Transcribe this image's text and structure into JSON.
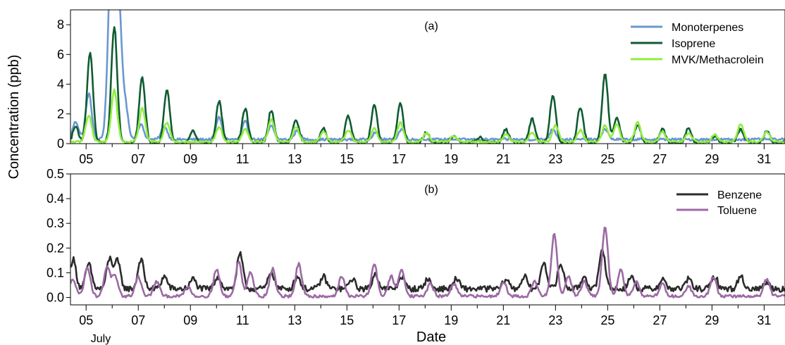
{
  "chart_data": [
    {
      "type": "line",
      "panel_label": "(a)",
      "x_ticks": [
        "05",
        "07",
        "09",
        "11",
        "13",
        "15",
        "17",
        "19",
        "21",
        "23",
        "25",
        "27",
        "29",
        "31"
      ],
      "x_range": [
        4.4,
        31.8
      ],
      "ylim": [
        0,
        9
      ],
      "y_ticks": [
        "0",
        "2",
        "4",
        "6",
        "8"
      ],
      "legend_position": "top-right",
      "grid": false,
      "series": [
        {
          "name": "Monoterpenes",
          "color": "#6b97cf",
          "base": 0.28,
          "noise": 0.08,
          "peaks": [
            [
              4.6,
              1.2
            ],
            [
              5.1,
              3.1
            ],
            [
              5.9,
              5.0
            ],
            [
              6.02,
              10.5
            ],
            [
              6.25,
              8.6
            ],
            [
              6.5,
              2.2
            ],
            [
              7.1,
              1.0
            ],
            [
              8.0,
              0.9
            ],
            [
              10.1,
              1.5
            ],
            [
              11.1,
              1.2
            ],
            [
              12.1,
              0.9
            ],
            [
              13.1,
              0.6
            ],
            [
              16.1,
              0.5
            ],
            [
              17.1,
              0.7
            ],
            [
              22.9,
              0.7
            ],
            [
              24.9,
              0.7
            ]
          ]
        },
        {
          "name": "Isoprene",
          "color": "#0f5c32",
          "base": 0.05,
          "noise": 0.1,
          "peaks": [
            [
              4.6,
              1.1
            ],
            [
              5.15,
              6.1
            ],
            [
              6.08,
              7.8
            ],
            [
              7.15,
              4.4
            ],
            [
              8.1,
              3.5
            ],
            [
              9.1,
              0.8
            ],
            [
              10.1,
              2.8
            ],
            [
              11.1,
              2.3
            ],
            [
              12.1,
              2.2
            ],
            [
              13.05,
              1.6
            ],
            [
              14.1,
              1.0
            ],
            [
              15.05,
              1.8
            ],
            [
              16.05,
              2.5
            ],
            [
              17.05,
              2.6
            ],
            [
              18.05,
              0.7
            ],
            [
              19.1,
              0.5
            ],
            [
              20.1,
              0.4
            ],
            [
              21.1,
              0.9
            ],
            [
              22.1,
              1.6
            ],
            [
              22.9,
              3.2
            ],
            [
              23.95,
              2.4
            ],
            [
              24.9,
              4.6
            ],
            [
              25.35,
              1.7
            ],
            [
              26.15,
              1.2
            ],
            [
              27.1,
              0.9
            ],
            [
              28.1,
              1.0
            ],
            [
              29.1,
              0.5
            ],
            [
              30.1,
              0.9
            ],
            [
              31.1,
              0.8
            ]
          ]
        },
        {
          "name": "MVK/Methacrolein",
          "color": "#90ee40",
          "base": 0.12,
          "noise": 0.06,
          "peaks": [
            [
              5.1,
              1.8
            ],
            [
              6.08,
              3.5
            ],
            [
              7.15,
              2.3
            ],
            [
              8.1,
              1.3
            ],
            [
              10.1,
              1.0
            ],
            [
              11.1,
              0.9
            ],
            [
              12.1,
              1.5
            ],
            [
              13.05,
              1.0
            ],
            [
              14.1,
              0.7
            ],
            [
              15.05,
              0.8
            ],
            [
              16.05,
              0.9
            ],
            [
              17.05,
              1.3
            ],
            [
              18.05,
              0.6
            ],
            [
              19.1,
              0.4
            ],
            [
              21.1,
              0.5
            ],
            [
              22.1,
              0.6
            ],
            [
              23.0,
              1.1
            ],
            [
              23.95,
              0.8
            ],
            [
              24.9,
              1.1
            ],
            [
              25.35,
              1.2
            ],
            [
              26.15,
              1.3
            ],
            [
              27.1,
              0.7
            ],
            [
              28.1,
              0.6
            ],
            [
              29.1,
              0.5
            ],
            [
              30.1,
              1.2
            ],
            [
              31.1,
              0.7
            ]
          ]
        }
      ]
    },
    {
      "type": "line",
      "panel_label": "(b)",
      "x_ticks": [
        "05",
        "07",
        "09",
        "11",
        "13",
        "15",
        "17",
        "19",
        "21",
        "23",
        "25",
        "27",
        "29",
        "31"
      ],
      "x_range": [
        4.4,
        31.8
      ],
      "xlabel": "Date",
      "x_sublabel": "July",
      "ylim": [
        -0.03,
        0.5
      ],
      "y_ticks": [
        "0.0",
        "0.1",
        "0.2",
        "0.3",
        "0.4",
        "0.5"
      ],
      "legend_position": "top-right",
      "grid": false,
      "series": [
        {
          "name": "Benzene",
          "color": "#2b2b2b",
          "base": 0.035,
          "noise": 0.012,
          "peaks": [
            [
              4.5,
              0.12
            ],
            [
              5.1,
              0.1
            ],
            [
              5.9,
              0.12
            ],
            [
              6.2,
              0.11
            ],
            [
              7.1,
              0.12
            ],
            [
              8.0,
              0.05
            ],
            [
              9.1,
              0.04
            ],
            [
              10.05,
              0.05
            ],
            [
              10.9,
              0.14
            ],
            [
              12.1,
              0.07
            ],
            [
              13.1,
              0.05
            ],
            [
              14.1,
              0.05
            ],
            [
              15.2,
              0.04
            ],
            [
              16.1,
              0.06
            ],
            [
              17.1,
              0.05
            ],
            [
              18.1,
              0.04
            ],
            [
              19.2,
              0.04
            ],
            [
              21.1,
              0.04
            ],
            [
              21.8,
              0.05
            ],
            [
              22.55,
              0.11
            ],
            [
              23.2,
              0.1
            ],
            [
              24.1,
              0.05
            ],
            [
              24.8,
              0.16
            ],
            [
              25.9,
              0.05
            ],
            [
              27.1,
              0.04
            ],
            [
              28.1,
              0.04
            ],
            [
              29.1,
              0.05
            ],
            [
              30.1,
              0.05
            ],
            [
              31.1,
              0.03
            ]
          ]
        },
        {
          "name": "Toluene",
          "color": "#9c6aa4",
          "base": 0.005,
          "noise": 0.006,
          "peaks": [
            [
              4.5,
              0.07
            ],
            [
              5.05,
              0.12
            ],
            [
              5.8,
              0.12
            ],
            [
              6.1,
              0.08
            ],
            [
              7.0,
              0.08
            ],
            [
              7.7,
              0.06
            ],
            [
              8.9,
              0.04
            ],
            [
              10.0,
              0.11
            ],
            [
              10.85,
              0.14
            ],
            [
              11.3,
              0.1
            ],
            [
              12.15,
              0.11
            ],
            [
              13.15,
              0.13
            ],
            [
              14.8,
              0.08
            ],
            [
              16.05,
              0.13
            ],
            [
              16.7,
              0.08
            ],
            [
              17.1,
              0.11
            ],
            [
              18.2,
              0.05
            ],
            [
              19.1,
              0.05
            ],
            [
              21.0,
              0.06
            ],
            [
              22.2,
              0.06
            ],
            [
              22.95,
              0.25
            ],
            [
              23.5,
              0.08
            ],
            [
              24.1,
              0.06
            ],
            [
              24.9,
              0.28
            ],
            [
              25.5,
              0.11
            ],
            [
              26.1,
              0.06
            ],
            [
              27.1,
              0.05
            ],
            [
              28.1,
              0.04
            ],
            [
              29.05,
              0.08
            ],
            [
              31.1,
              0.07
            ]
          ]
        }
      ]
    }
  ],
  "shared": {
    "ylabel": "Concentration (ppb)"
  }
}
